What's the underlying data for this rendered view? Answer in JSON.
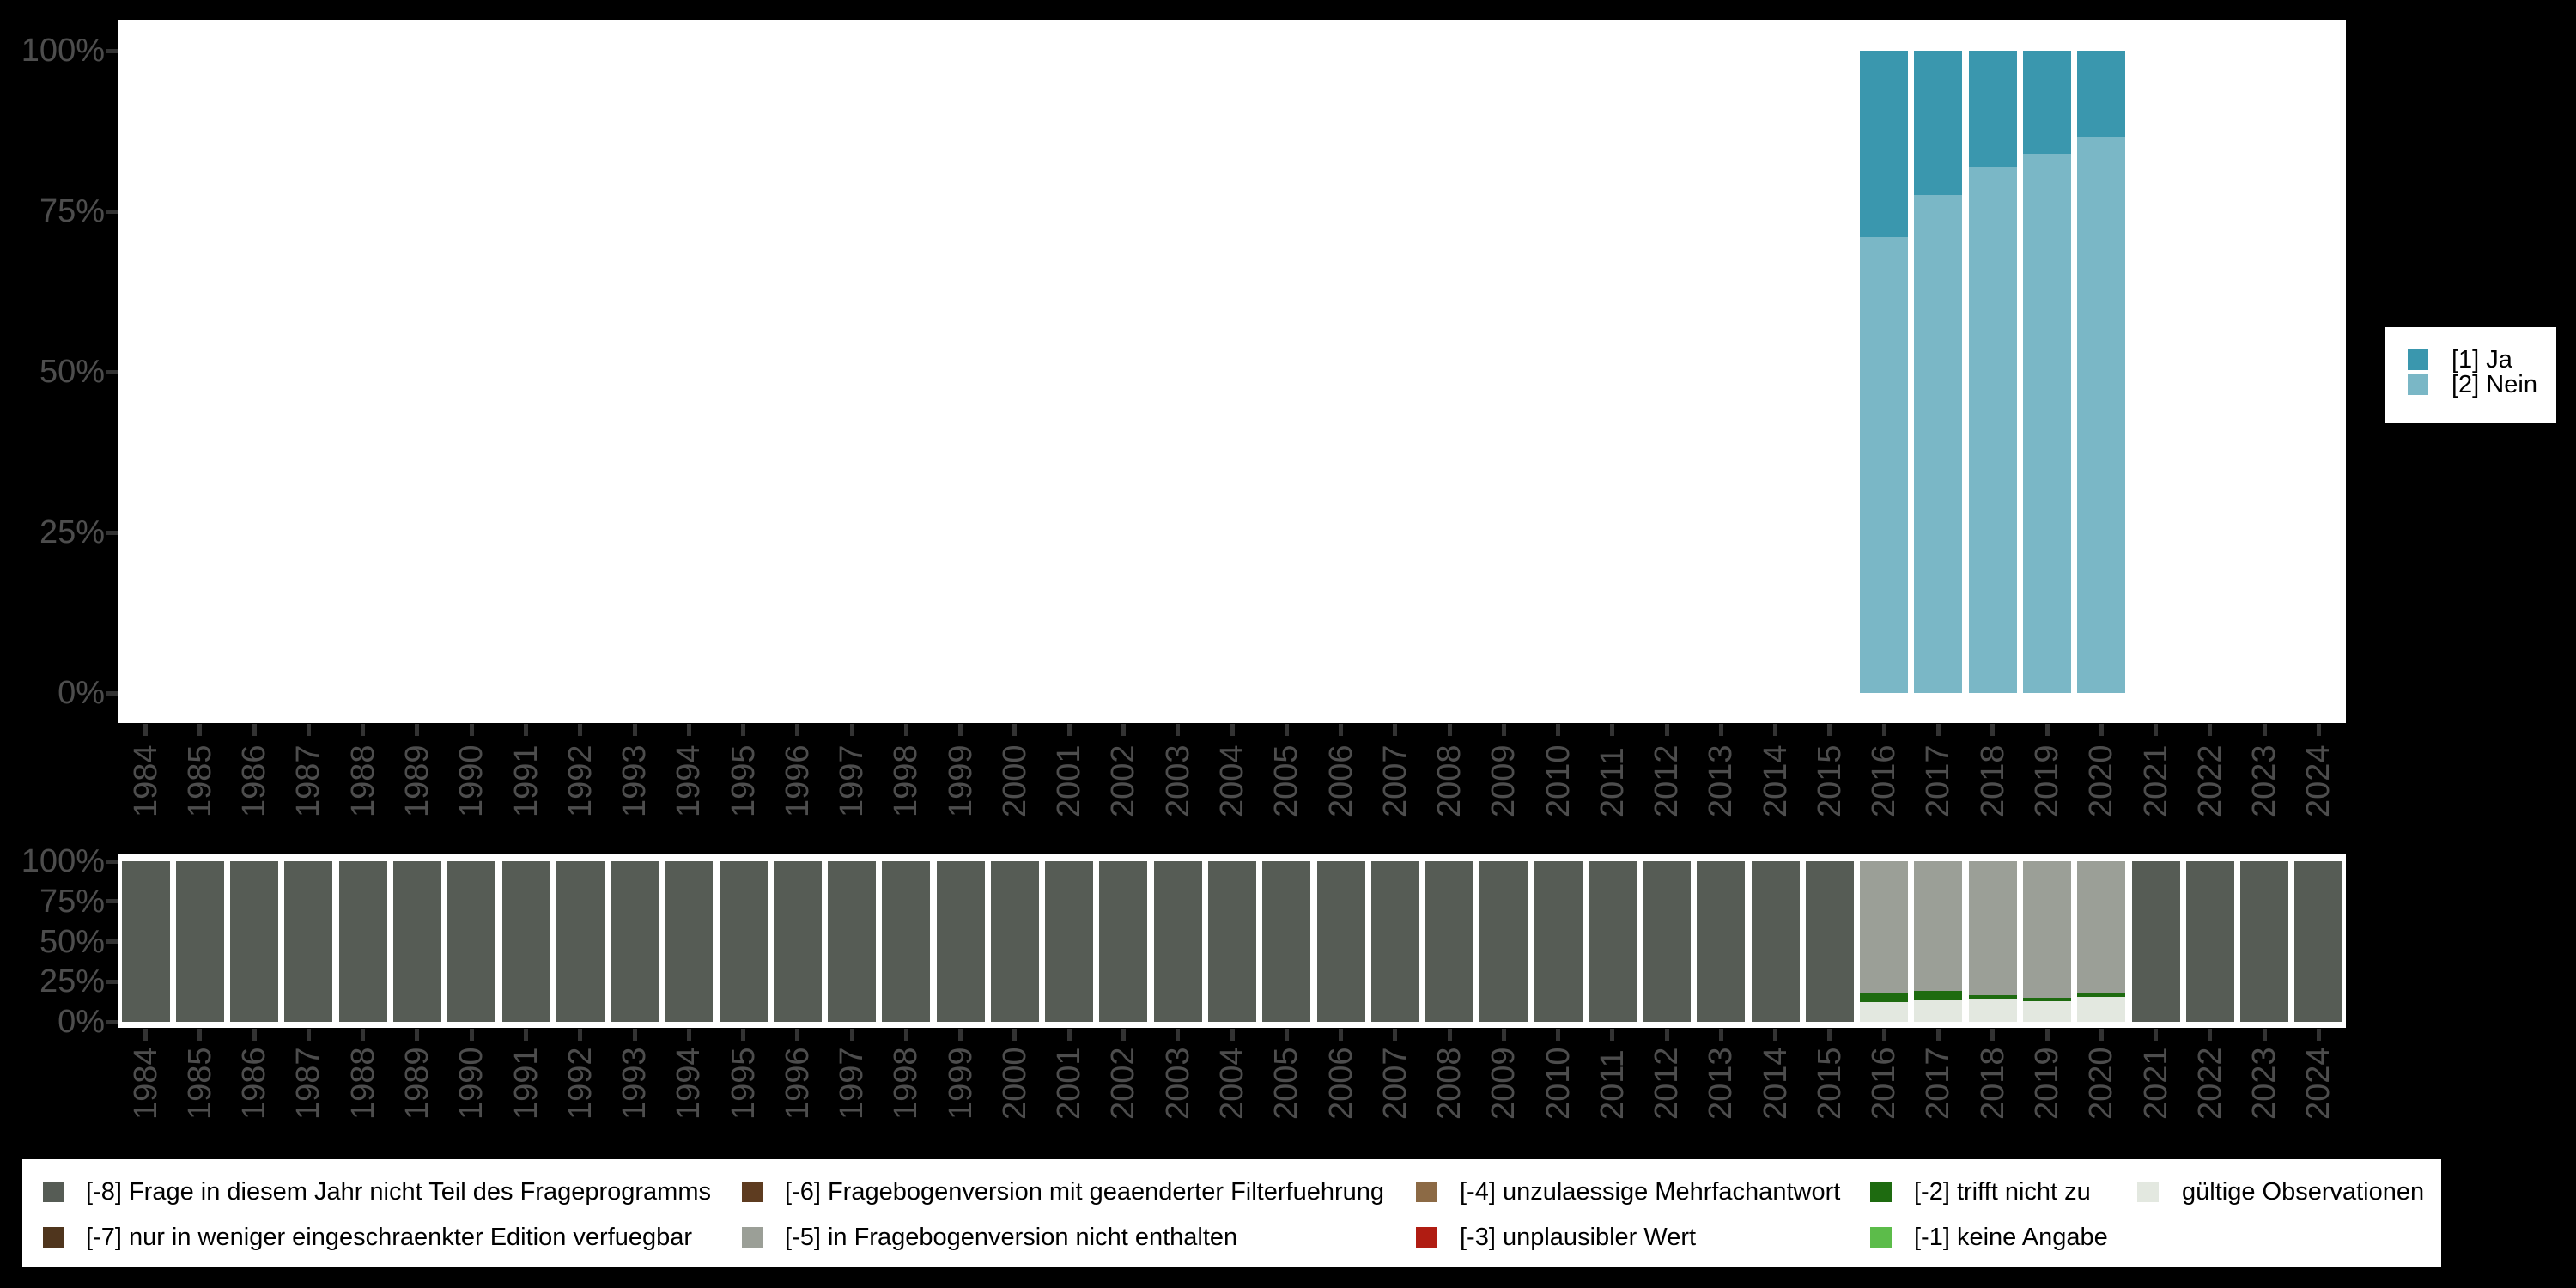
{
  "figure": {
    "background": "#000000",
    "panel_background": "#ffffff"
  },
  "axes": {
    "text_color": "#4d4d4d",
    "tick_color": "#333333",
    "y_tick_labels_top_to_bottom": [
      "100%",
      "75%",
      "50%",
      "25%",
      "0%"
    ]
  },
  "chart_data": [
    {
      "id": "responses-by-year",
      "type": "bar",
      "stacked": true,
      "title": "",
      "xlabel": "",
      "ylabel": "",
      "ylim": [
        0,
        100
      ],
      "yticks": [
        "0%",
        "25%",
        "50%",
        "75%",
        "100%"
      ],
      "grid": false,
      "legend_position": "right",
      "x": [
        "1984",
        "1985",
        "1986",
        "1987",
        "1988",
        "1989",
        "1990",
        "1991",
        "1992",
        "1993",
        "1994",
        "1995",
        "1996",
        "1997",
        "1998",
        "1999",
        "2000",
        "2001",
        "2002",
        "2003",
        "2004",
        "2005",
        "2006",
        "2007",
        "2008",
        "2009",
        "2010",
        "2011",
        "2012",
        "2013",
        "2014",
        "2015",
        "2016",
        "2017",
        "2018",
        "2019",
        "2020",
        "2021",
        "2022",
        "2023",
        "2024"
      ],
      "stack_bottom_to_top": [
        "[2] Nein",
        "[1] Ja"
      ],
      "series": [
        {
          "name": "[1] Ja",
          "key": "ja",
          "color": "#3a97ae",
          "unit": "percent",
          "values_by_year": {
            "2016": 29.0,
            "2017": 22.5,
            "2018": 18.0,
            "2019": 16.0,
            "2020": 13.5
          }
        },
        {
          "name": "[2] Nein",
          "key": "nein",
          "color": "#7ab7c6",
          "unit": "percent",
          "values_by_year": {
            "2016": 71.0,
            "2017": 77.5,
            "2018": 82.0,
            "2019": 84.0,
            "2020": 86.5
          }
        }
      ]
    },
    {
      "id": "missings-by-year",
      "type": "bar",
      "stacked": true,
      "title": "",
      "xlabel": "",
      "ylabel": "",
      "ylim": [
        0,
        100
      ],
      "yticks": [
        "0%",
        "25%",
        "50%",
        "75%",
        "100%"
      ],
      "grid": false,
      "legend_position": "bottom",
      "x": [
        "1984",
        "1985",
        "1986",
        "1987",
        "1988",
        "1989",
        "1990",
        "1991",
        "1992",
        "1993",
        "1994",
        "1995",
        "1996",
        "1997",
        "1998",
        "1999",
        "2000",
        "2001",
        "2002",
        "2003",
        "2004",
        "2005",
        "2006",
        "2007",
        "2008",
        "2009",
        "2010",
        "2011",
        "2012",
        "2013",
        "2014",
        "2015",
        "2016",
        "2017",
        "2018",
        "2019",
        "2020",
        "2021",
        "2022",
        "2023",
        "2024"
      ],
      "stack_bottom_to_top": [
        "gültige Observationen",
        "[-2] trifft nicht zu",
        "[-5] in Fragebogenversion nicht enthalten",
        "[-8] Frage in diesem Jahr nicht Teil des Frageprogramms"
      ],
      "series": [
        {
          "name": "gültige Observationen",
          "key": "valid",
          "color": "#e3e8e0",
          "unit": "percent",
          "values_by_year": {
            "2016": 12.3,
            "2017": 13.4,
            "2018": 13.9,
            "2019": 12.8,
            "2020": 15.5
          }
        },
        {
          "name": "[-2] trifft nicht zu",
          "key": "m2",
          "color": "#1e6b10",
          "unit": "percent",
          "values_by_year": {
            "2016": 5.9,
            "2017": 5.9,
            "2018": 2.7,
            "2019": 2.1,
            "2020": 2.1
          }
        },
        {
          "name": "[-5] in Fragebogenversion nicht enthalten",
          "key": "m5",
          "color": "#9b9f97",
          "unit": "percent",
          "values_by_year": {
            "2016": 81.8,
            "2017": 80.7,
            "2018": 83.4,
            "2019": 85.1,
            "2020": 82.4
          }
        },
        {
          "name": "[-8] Frage in diesem Jahr nicht Teil des Frageprogramms",
          "key": "m8",
          "color": "#565c55",
          "unit": "percent",
          "values_by_year": {
            "1984": 100,
            "1985": 100,
            "1986": 100,
            "1987": 100,
            "1988": 100,
            "1989": 100,
            "1990": 100,
            "1991": 100,
            "1992": 100,
            "1993": 100,
            "1994": 100,
            "1995": 100,
            "1996": 100,
            "1997": 100,
            "1998": 100,
            "1999": 100,
            "2000": 100,
            "2001": 100,
            "2002": 100,
            "2003": 100,
            "2004": 100,
            "2005": 100,
            "2006": 100,
            "2007": 100,
            "2008": 100,
            "2009": 100,
            "2010": 100,
            "2011": 100,
            "2012": 100,
            "2013": 100,
            "2014": 100,
            "2015": 100,
            "2021": 100,
            "2022": 100,
            "2023": 100,
            "2024": 100
          }
        }
      ]
    }
  ],
  "legend_top": {
    "items": [
      {
        "key": "ja",
        "label": "[1] Ja",
        "color": "#3a97ae"
      },
      {
        "key": "nein",
        "label": "[2] Nein",
        "color": "#7ab7c6"
      }
    ]
  },
  "legend_bottom": {
    "columns": [
      {
        "items": [
          {
            "key": "m8",
            "label": "[-8] Frage in diesem Jahr nicht Teil des Frageprogramms",
            "color": "#565c55"
          },
          {
            "key": "m7",
            "label": "[-7] nur in weniger eingeschraenkter Edition verfuegbar",
            "color": "#4f351d"
          }
        ]
      },
      {
        "items": [
          {
            "key": "m6",
            "label": "[-6] Fragebogenversion mit geaenderter Filterfuehrung",
            "color": "#5e3c20"
          },
          {
            "key": "m5",
            "label": "[-5] in Fragebogenversion nicht enthalten",
            "color": "#9b9f97"
          }
        ]
      },
      {
        "items": [
          {
            "key": "m4",
            "label": "[-4] unzulaessige Mehrfachantwort",
            "color": "#8c6a45"
          },
          {
            "key": "m3",
            "label": "[-3] unplausibler Wert",
            "color": "#b01c12"
          }
        ]
      },
      {
        "items": [
          {
            "key": "m2",
            "label": "[-2] trifft nicht zu",
            "color": "#1e6b10"
          },
          {
            "key": "m1",
            "label": "[-1] keine Angabe",
            "color": "#5cbc4a"
          }
        ]
      },
      {
        "items": [
          {
            "key": "valid",
            "label": "gültige Observationen",
            "color": "#e3e8e0"
          }
        ]
      }
    ]
  }
}
